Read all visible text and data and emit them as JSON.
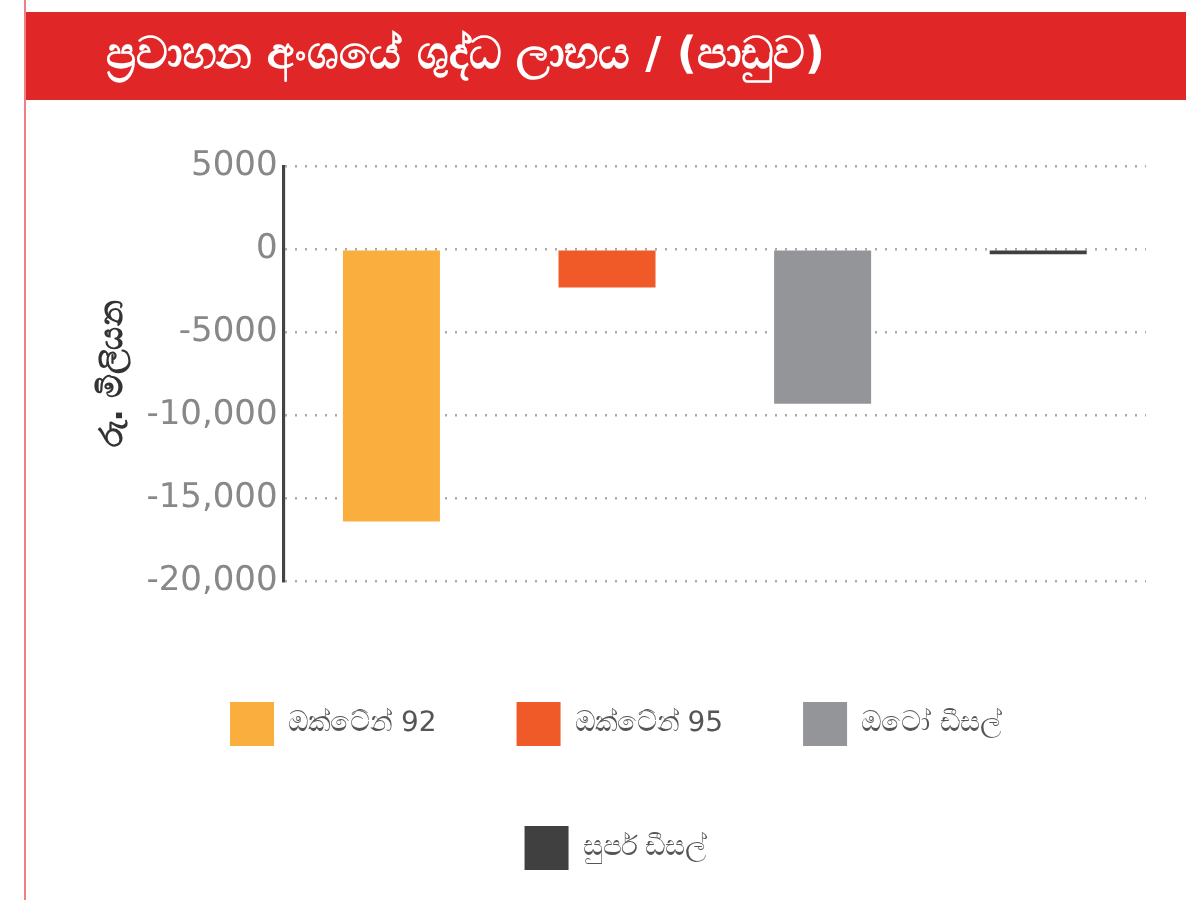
{
  "chart_data": {
    "type": "bar",
    "title": "ප්‍රවාහන අංශයේ ශුද්ධ ලාභය / (පාඩුව)",
    "ylabel": "රු. මිලියන",
    "categories": [
      null
    ],
    "series": [
      {
        "name": "ඔක්ටේන් 92",
        "color": "#f9ae3e",
        "values": [
          -16400
        ]
      },
      {
        "name": "ඔක්ටේන් 95",
        "color": "#f05a28",
        "values": [
          -2300
        ]
      },
      {
        "name": "ඔටෝ ඩීසල්",
        "color": "#939598",
        "values": [
          -9300
        ]
      },
      {
        "name": "සුපර් ඩීසල්",
        "color": "#404041",
        "values": [
          -300
        ]
      }
    ],
    "ylim": [
      -20000,
      5000
    ],
    "yticks": [
      {
        "value": -20000,
        "label": "-20,000"
      },
      {
        "value": -15000,
        "label": "-15,000"
      },
      {
        "value": -10000,
        "label": "-10,000"
      },
      -5000,
      0,
      5000
    ],
    "grid": "y",
    "legend": "bottom"
  }
}
